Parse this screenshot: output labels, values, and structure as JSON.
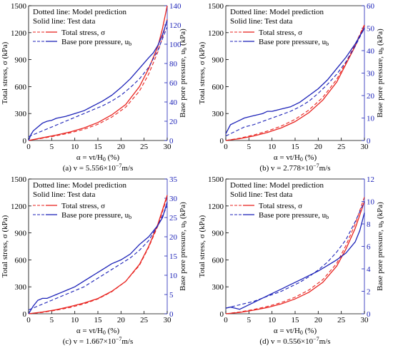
{
  "figure": {
    "legend_text": {
      "dotted": "Dotted line: Model prediction",
      "solid": "Solid line: Test data",
      "total_stress": "Total stress, σ",
      "pore_pressure": "Base pore pressure, u",
      "pore_sub": "b"
    },
    "colors": {
      "red": "#e8231f",
      "blue": "#1c22b8",
      "axis": "#000000",
      "right_axis": "#1c22b8"
    }
  },
  "chart_data": [
    {
      "type": "line",
      "caption_prefix": "(a) v = 5.556×10",
      "caption_exp": "−7",
      "caption_suffix": "m/s",
      "xlabel_main": "α = vt/H",
      "xlabel_sub": "0",
      "xlabel_unit": " (%)",
      "ylabel_left": "Total stress, σ (kPa)",
      "ylabel_right_main": "Base pore pressure, u",
      "ylabel_right_sub": "b",
      "ylabel_right_unit": " (kPa)",
      "xlim": [
        0,
        30
      ],
      "xticks": [
        0,
        5,
        10,
        15,
        20,
        25,
        30
      ],
      "ylim_left": [
        0,
        1500
      ],
      "yticks_left": [
        0,
        300,
        600,
        900,
        1200,
        1500
      ],
      "ylim_right": [
        0,
        140
      ],
      "yticks_right": [
        0,
        20,
        40,
        60,
        80,
        100,
        120,
        140
      ],
      "series": [
        {
          "name": "Total stress, σ",
          "kind": "test",
          "axis": "left",
          "x": [
            0,
            3,
            6,
            9,
            12,
            15,
            18,
            21,
            24,
            26,
            28,
            29,
            30
          ],
          "y": [
            0,
            30,
            60,
            95,
            140,
            200,
            285,
            400,
            600,
            800,
            1050,
            1250,
            1500
          ]
        },
        {
          "name": "Total stress, σ",
          "kind": "model",
          "axis": "left",
          "x": [
            0,
            3,
            6,
            9,
            12,
            15,
            18,
            21,
            24,
            26,
            28,
            29,
            30
          ],
          "y": [
            0,
            25,
            52,
            85,
            125,
            180,
            260,
            370,
            550,
            740,
            990,
            1150,
            1350
          ]
        },
        {
          "name": "Base pore pressure, u_b",
          "kind": "test",
          "axis": "right",
          "x": [
            0,
            0.5,
            1,
            2,
            3,
            4,
            5,
            6,
            8,
            10,
            12,
            14,
            16,
            18,
            20,
            22,
            24,
            26,
            27,
            28,
            29,
            30
          ],
          "y": [
            0,
            6,
            10,
            14,
            18,
            20,
            21,
            23,
            25,
            28,
            31,
            36,
            41,
            47,
            55,
            64,
            75,
            86,
            91,
            99,
            110,
            125
          ]
        },
        {
          "name": "Base pore pressure, u_b",
          "kind": "model",
          "axis": "right",
          "x": [
            0,
            2,
            4,
            6,
            8,
            10,
            12,
            14,
            16,
            18,
            20,
            22,
            24,
            26,
            28,
            30
          ],
          "y": [
            4,
            8,
            12,
            16,
            20,
            24,
            28,
            32,
            36,
            41,
            47,
            55,
            64,
            76,
            94,
            118
          ]
        }
      ]
    },
    {
      "type": "line",
      "caption_prefix": "(b) v = 2.778×10",
      "caption_exp": "−7",
      "caption_suffix": "m/s",
      "xlabel_main": "α = vt/H",
      "xlabel_sub": "0",
      "xlabel_unit": " (%)",
      "ylabel_left": "Total stress, σ (kPa)",
      "ylabel_right_main": "Base pore pressure, u",
      "ylabel_right_sub": "b",
      "ylabel_right_unit": " (kPa)",
      "xlim": [
        0,
        30
      ],
      "xticks": [
        0,
        5,
        10,
        15,
        20,
        25,
        30
      ],
      "ylim_left": [
        0,
        1500
      ],
      "yticks_left": [
        0,
        300,
        600,
        900,
        1200,
        1500
      ],
      "ylim_right": [
        0,
        60
      ],
      "yticks_right": [
        0,
        10,
        20,
        30,
        40,
        50,
        60
      ],
      "series": [
        {
          "name": "Total stress, σ",
          "kind": "test",
          "axis": "left",
          "x": [
            0,
            3,
            6,
            9,
            12,
            15,
            18,
            21,
            24,
            26,
            28,
            30
          ],
          "y": [
            0,
            20,
            50,
            90,
            140,
            210,
            310,
            450,
            650,
            850,
            1050,
            1280
          ]
        },
        {
          "name": "Total stress, σ",
          "kind": "model",
          "axis": "left",
          "x": [
            0,
            3,
            6,
            9,
            12,
            15,
            18,
            21,
            24,
            26,
            28,
            30
          ],
          "y": [
            0,
            25,
            60,
            105,
            160,
            235,
            340,
            480,
            680,
            870,
            1070,
            1290
          ]
        },
        {
          "name": "Base pore pressure, u_b",
          "kind": "test",
          "axis": "right",
          "x": [
            0,
            1,
            2,
            3,
            4,
            5,
            6,
            7,
            8,
            9,
            10,
            12,
            14,
            16,
            18,
            20,
            22,
            24,
            26,
            28,
            30
          ],
          "y": [
            3,
            7,
            8,
            9,
            10,
            10.5,
            11,
            11.5,
            12,
            13,
            13,
            14,
            15,
            17,
            20,
            23,
            27,
            32,
            37,
            43,
            50
          ]
        },
        {
          "name": "Base pore pressure, u_b",
          "kind": "model",
          "axis": "right",
          "x": [
            0,
            2,
            4,
            6,
            8,
            10,
            12,
            14,
            16,
            18,
            20,
            22,
            24,
            26,
            28,
            30
          ],
          "y": [
            2,
            4,
            6,
            7,
            8.5,
            10,
            11.5,
            13,
            15,
            17.5,
            21,
            25,
            29.5,
            35,
            42,
            50
          ]
        }
      ]
    },
    {
      "type": "line",
      "caption_prefix": "(c) v = 1.667×10",
      "caption_exp": "−7",
      "caption_suffix": "m/s",
      "xlabel_main": "α = vt/H",
      "xlabel_sub": "0",
      "xlabel_unit": " (%)",
      "ylabel_left": "Total stress, σ (kPa)",
      "ylabel_right_main": "Base pore pressure, u",
      "ylabel_right_sub": "b",
      "ylabel_right_unit": " (kPa)",
      "xlim": [
        0,
        30
      ],
      "xticks": [
        0,
        5,
        10,
        15,
        20,
        25,
        30
      ],
      "ylim_left": [
        0,
        1500
      ],
      "yticks_left": [
        0,
        300,
        600,
        900,
        1200,
        1500
      ],
      "ylim_right": [
        0,
        35
      ],
      "yticks_right": [
        0,
        5,
        10,
        15,
        20,
        25,
        30,
        35
      ],
      "series": [
        {
          "name": "Total stress, σ",
          "kind": "test",
          "axis": "left",
          "x": [
            0,
            3,
            6,
            9,
            12,
            15,
            18,
            21,
            24,
            26,
            28,
            30
          ],
          "y": [
            0,
            20,
            45,
            80,
            120,
            170,
            250,
            360,
            550,
            750,
            1000,
            1320
          ]
        },
        {
          "name": "Total stress, σ",
          "kind": "model",
          "axis": "left",
          "x": [
            0,
            3,
            6,
            9,
            12,
            15,
            18,
            21,
            24,
            26,
            28,
            30
          ],
          "y": [
            0,
            15,
            40,
            70,
            110,
            165,
            245,
            360,
            540,
            740,
            980,
            1300
          ]
        },
        {
          "name": "Base pore pressure, u_b",
          "kind": "test",
          "axis": "right",
          "x": [
            0,
            1,
            2,
            3,
            4,
            5,
            6,
            7,
            8,
            10,
            12,
            14,
            16,
            18,
            20,
            22,
            24,
            26,
            27,
            28,
            29,
            30
          ],
          "y": [
            0,
            2,
            3.5,
            4,
            4,
            4.5,
            5,
            5.5,
            6,
            7,
            8.5,
            10,
            11.5,
            13,
            14,
            15.5,
            18,
            20,
            21.5,
            23,
            25,
            29
          ]
        },
        {
          "name": "Base pore pressure, u_b",
          "kind": "model",
          "axis": "right",
          "x": [
            0,
            2,
            4,
            6,
            8,
            10,
            12,
            14,
            16,
            18,
            20,
            22,
            24,
            26,
            28,
            30
          ],
          "y": [
            1,
            2,
            3,
            4,
            5,
            6,
            7,
            8.5,
            10,
            11.5,
            13,
            14.5,
            16.5,
            19,
            23,
            28
          ]
        }
      ]
    },
    {
      "type": "line",
      "caption_prefix": "(d) v = 0.556×10",
      "caption_exp": "−7",
      "caption_suffix": "m/s",
      "xlabel_main": "α = vt/H",
      "xlabel_sub": "0",
      "xlabel_unit": " (%)",
      "ylabel_left": "Total stress, σ (kPa)",
      "ylabel_right_main": "Base pore pressure, u",
      "ylabel_right_sub": "b",
      "ylabel_right_unit": " (kPa)",
      "xlim": [
        0,
        30
      ],
      "xticks": [
        0,
        5,
        10,
        15,
        20,
        25,
        30
      ],
      "ylim_left": [
        0,
        1500
      ],
      "yticks_left": [
        0,
        300,
        600,
        900,
        1200,
        1500
      ],
      "ylim_right": [
        0,
        12
      ],
      "yticks_right": [
        0,
        2,
        4,
        6,
        8,
        10,
        12
      ],
      "series": [
        {
          "name": "Total stress, σ",
          "kind": "test",
          "axis": "left",
          "x": [
            0,
            3,
            6,
            9,
            12,
            15,
            18,
            21,
            24,
            26,
            28,
            30
          ],
          "y": [
            0,
            15,
            40,
            70,
            110,
            165,
            240,
            350,
            530,
            720,
            950,
            1250
          ]
        },
        {
          "name": "Total stress, σ",
          "kind": "model",
          "axis": "left",
          "x": [
            0,
            3,
            6,
            9,
            12,
            15,
            18,
            21,
            24,
            26,
            28,
            30
          ],
          "y": [
            0,
            20,
            48,
            82,
            125,
            185,
            265,
            380,
            560,
            760,
            1000,
            1300
          ]
        },
        {
          "name": "Base pore pressure, u_b",
          "kind": "test",
          "axis": "right",
          "x": [
            0,
            1,
            2,
            3,
            4,
            5,
            6,
            8,
            10,
            12,
            14,
            16,
            18,
            20,
            22,
            24,
            26,
            28,
            29,
            30
          ],
          "y": [
            0.5,
            0.6,
            0.5,
            0.4,
            0.6,
            0.8,
            1,
            1.4,
            1.8,
            2.2,
            2.6,
            3,
            3.4,
            3.8,
            4.3,
            4.8,
            5.4,
            6.4,
            7.4,
            9
          ]
        },
        {
          "name": "Base pore pressure, u_b",
          "kind": "model",
          "axis": "right",
          "x": [
            0,
            2,
            4,
            6,
            8,
            10,
            12,
            14,
            16,
            18,
            20,
            22,
            24,
            26,
            28,
            30
          ],
          "y": [
            0.5,
            0.7,
            0.9,
            1.1,
            1.4,
            1.7,
            2,
            2.4,
            2.8,
            3.3,
            3.9,
            4.6,
            5.5,
            6.6,
            8.2,
            10
          ]
        }
      ]
    }
  ]
}
